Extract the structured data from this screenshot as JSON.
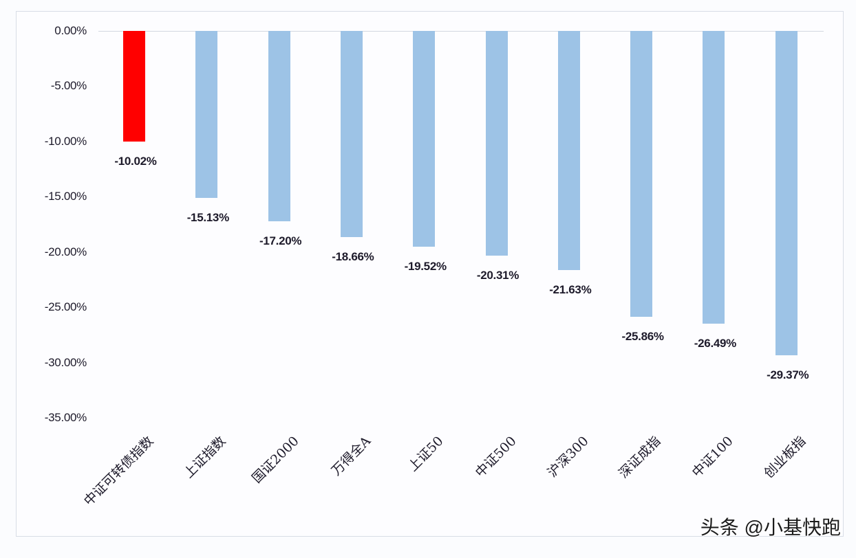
{
  "chart_data": {
    "type": "bar",
    "title": "",
    "xlabel": "",
    "ylabel": "",
    "ylim": [
      -35,
      0
    ],
    "yticks": [
      "0.00%",
      "-5.00%",
      "-10.00%",
      "-15.00%",
      "-20.00%",
      "-25.00%",
      "-30.00%",
      "-35.00%"
    ],
    "ytick_values": [
      0,
      -5,
      -10,
      -15,
      -20,
      -25,
      -30,
      -35
    ],
    "grid": false,
    "legend": null,
    "categories": [
      "中证可转债指数",
      "上证指数",
      "国证2000",
      "万得全A",
      "上证50",
      "中证500",
      "沪深300",
      "深证成指",
      "中证100",
      "创业板指"
    ],
    "values": [
      -10.02,
      -15.13,
      -17.2,
      -18.66,
      -19.52,
      -20.31,
      -21.63,
      -25.86,
      -26.49,
      -29.37
    ],
    "value_labels": [
      "-10.02%",
      "-15.13%",
      "-17.20%",
      "-18.66%",
      "-19.52%",
      "-20.31%",
      "-21.63%",
      "-25.86%",
      "-26.49%",
      "-29.37%"
    ],
    "colors": [
      "#ff0000",
      "#9dc3e6",
      "#9dc3e6",
      "#9dc3e6",
      "#9dc3e6",
      "#9dc3e6",
      "#9dc3e6",
      "#9dc3e6",
      "#9dc3e6",
      "#9dc3e6"
    ]
  },
  "watermark": "头条 @小基快跑"
}
